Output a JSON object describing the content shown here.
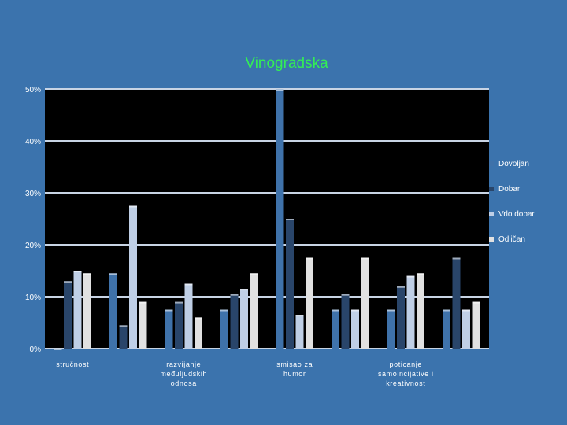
{
  "chart_data": {
    "type": "bar",
    "title": "Vinogradska",
    "categories": [
      "stručnost",
      "",
      "razvijanje međuljudskih odnosa",
      "",
      "smisao za humor",
      "",
      "poticanje samoincijative i kreativnost",
      ""
    ],
    "category_lines": [
      [
        "stručnost"
      ],
      [],
      [
        "razvijanje",
        "međuljudskih",
        "odnosa"
      ],
      [],
      [
        "smisao za",
        "humor"
      ],
      [],
      [
        "poticanje",
        "samoincijative i",
        "kreativnost"
      ],
      []
    ],
    "series": [
      {
        "name": "Dovoljan",
        "color": "#3f72aa",
        "values": [
          0,
          14.5,
          7.5,
          7.5,
          50,
          7.5,
          7.5,
          7.5
        ]
      },
      {
        "name": "Dobar",
        "color": "#29456a",
        "values": [
          13,
          4.5,
          9,
          10.5,
          25,
          10.5,
          12,
          17.5
        ]
      },
      {
        "name": "Vrlo dobar",
        "color": "#bfcfe6",
        "values": [
          15,
          27.5,
          12.5,
          11.5,
          6.5,
          7.5,
          14,
          7.5
        ]
      },
      {
        "name": "Odličan",
        "color": "#e1e1e1",
        "values": [
          14.5,
          9,
          6,
          14.5,
          17.5,
          17.5,
          14.5,
          9
        ]
      }
    ],
    "y_ticks": [
      "0%",
      "10%",
      "20%",
      "30%",
      "40%",
      "50%"
    ],
    "ylim": [
      0,
      50
    ],
    "grid": true,
    "legend_position": "right"
  }
}
